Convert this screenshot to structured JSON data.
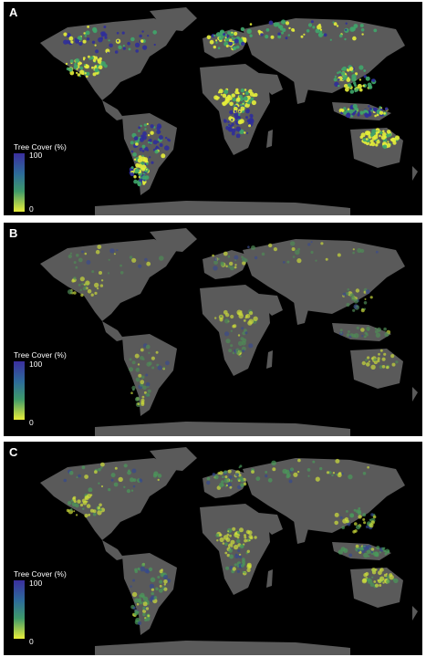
{
  "panels": [
    {
      "letter": "A",
      "legend": {
        "title": "Tree Cover (%)",
        "max": "100",
        "min": "0"
      },
      "palette": {
        "land": "#5a5a5a",
        "low": "#e6ee3a",
        "mid": "#3fa66a",
        "high": "#2f2e9a"
      },
      "intensity": "high"
    },
    {
      "letter": "B",
      "legend": {
        "title": "Tree Cover (%)",
        "max": "100",
        "min": "0"
      },
      "palette": {
        "land": "#5a5a5a",
        "low": "#c9d83a",
        "mid": "#4f8a55",
        "high": "#3a4a8a"
      },
      "intensity": "low"
    },
    {
      "letter": "C",
      "legend": {
        "title": "Tree Cover (%)",
        "max": "100",
        "min": "0"
      },
      "palette": {
        "land": "#5a5a5a",
        "low": "#cfe03a",
        "mid": "#4a9a5a",
        "high": "#34488e"
      },
      "intensity": "medium"
    }
  ],
  "colors": {
    "background": "#000000",
    "land": "#5a5a5a",
    "text": "#ffffff",
    "page": "#ffffff"
  }
}
